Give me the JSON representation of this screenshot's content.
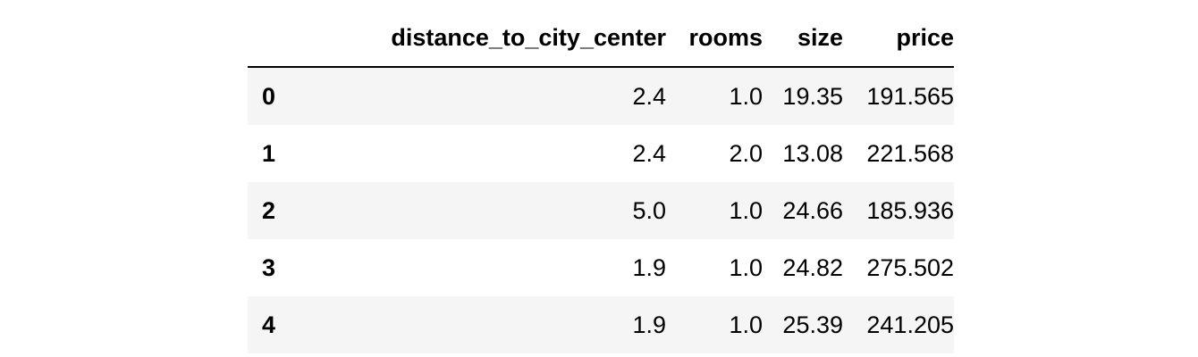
{
  "table": {
    "columns": [
      "distance_to_city_center",
      "rooms",
      "size",
      "price"
    ],
    "rows": [
      {
        "index": "0",
        "distance_to_city_center": "2.4",
        "rooms": "1.0",
        "size": "19.35",
        "price": "191.565"
      },
      {
        "index": "1",
        "distance_to_city_center": "2.4",
        "rooms": "2.0",
        "size": "13.08",
        "price": "221.568"
      },
      {
        "index": "2",
        "distance_to_city_center": "5.0",
        "rooms": "1.0",
        "size": "24.66",
        "price": "185.936"
      },
      {
        "index": "3",
        "distance_to_city_center": "1.9",
        "rooms": "1.0",
        "size": "24.82",
        "price": "275.502"
      },
      {
        "index": "4",
        "distance_to_city_center": "1.9",
        "rooms": "1.0",
        "size": "25.39",
        "price": "241.205"
      }
    ],
    "stripe_color": "#f5f5f5",
    "header_rule_color": "#000000"
  }
}
